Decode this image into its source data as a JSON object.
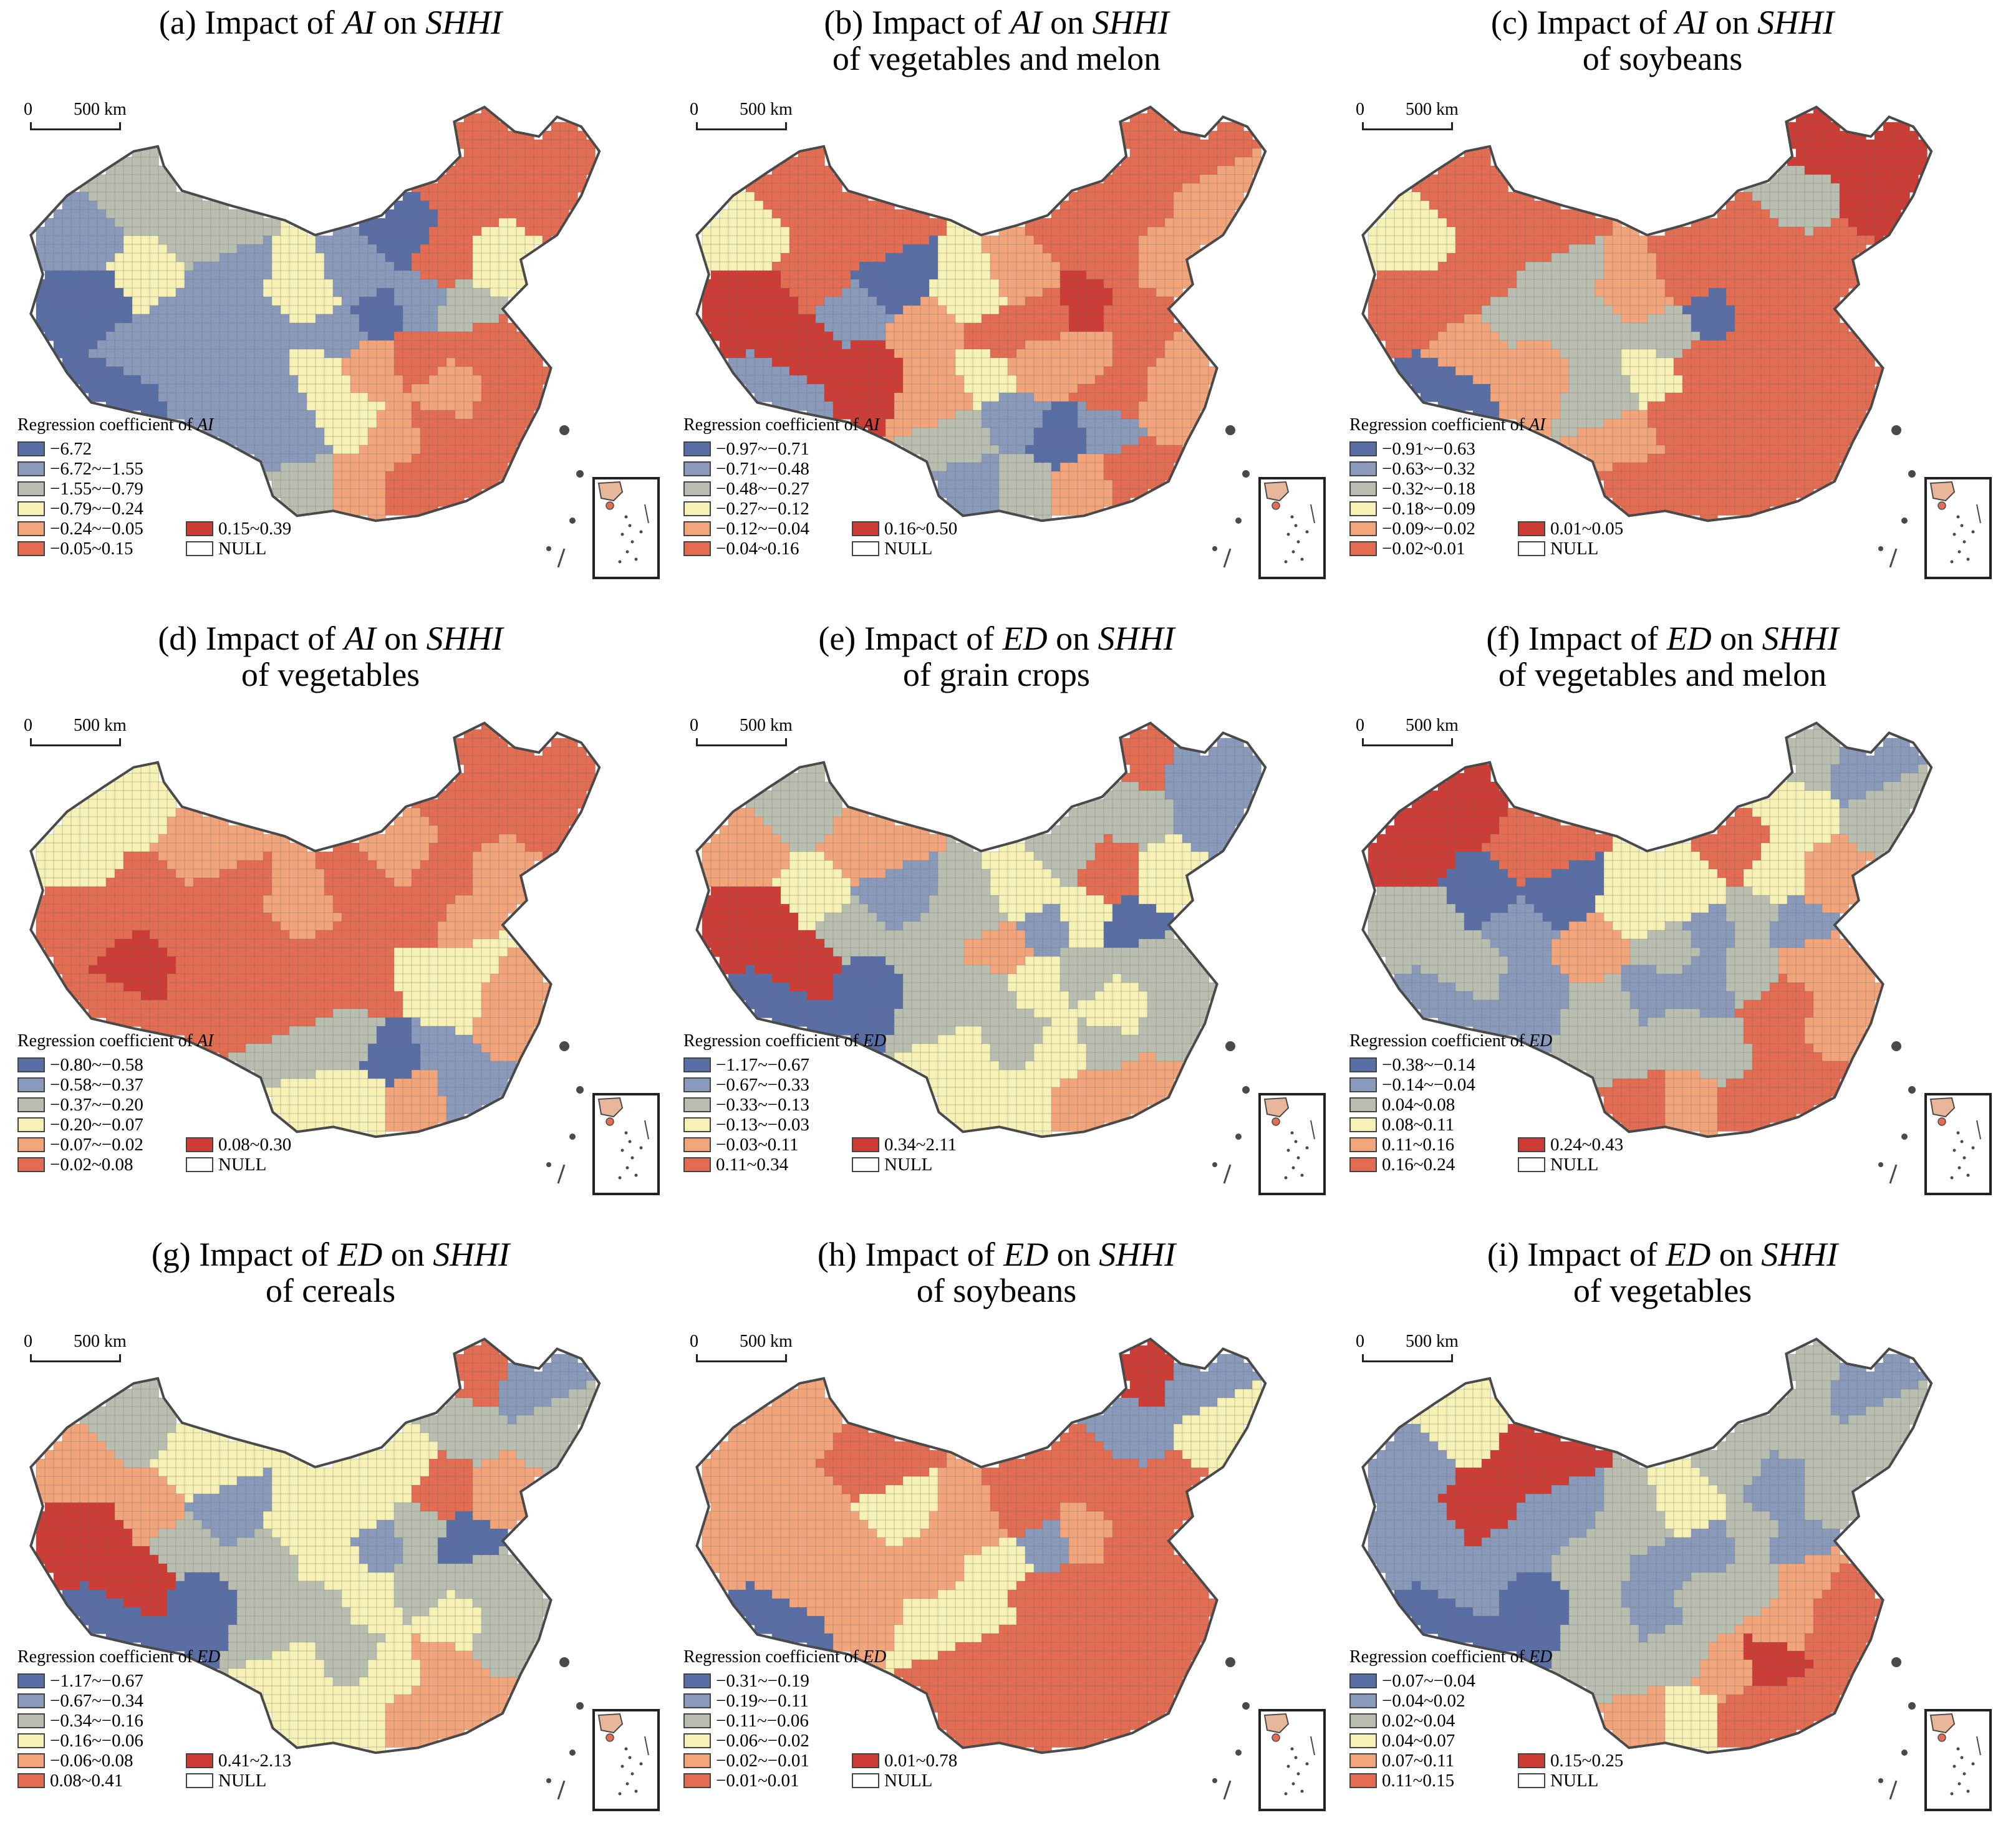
{
  "palette": {
    "c1": "#5a6ea6",
    "c2": "#8a9abb",
    "c3": "#b8bfb0",
    "c4": "#f6f2b6",
    "c5": "#f2a57a",
    "c6": "#e36d52",
    "c7": "#cd3d35",
    "null": "#ffffff",
    "border": "#4a4a4a"
  },
  "scale": {
    "zero": "0",
    "distance": "500 km"
  },
  "panels": [
    {
      "id": "a",
      "title_prefix": "(a) Impact of ",
      "var1": "AI",
      "mid": " on ",
      "var2": "SHHI",
      "subtitle": "",
      "legend_title": "Regression coefficient of ",
      "legend_var": "AI",
      "classes": [
        "−6.72",
        "−6.72~−1.55",
        "−1.55~−0.79",
        "−0.79~−0.24",
        "−0.24~−0.05",
        "−0.05~0.15",
        "0.15~0.39"
      ],
      "null_label": "NULL",
      "region_classes": [
        2,
        3,
        3,
        4,
        2,
        2,
        6,
        6,
        6,
        6,
        1,
        2,
        6,
        4,
        4,
        2,
        2,
        1,
        2,
        3,
        1,
        2,
        2,
        1,
        2,
        4,
        5,
        6,
        6,
        6,
        5,
        6,
        2,
        4,
        5,
        6,
        5,
        6,
        3,
        6
      ]
    },
    {
      "id": "b",
      "title_prefix": "(b) Impact of ",
      "var1": "AI",
      "mid": " on ",
      "var2": "SHHI",
      "subtitle": "of vegetables and melon",
      "legend_title": "Regression coefficient of ",
      "legend_var": "AI",
      "classes": [
        "−0.97~−0.71",
        "−0.71~−0.48",
        "−0.48~−0.27",
        "−0.27~−0.12",
        "−0.12~−0.04",
        "−0.04~0.16",
        "0.16~0.50"
      ],
      "null_label": "NULL",
      "region_classes": [
        4,
        6,
        6,
        6,
        1,
        2,
        6,
        6,
        5,
        6,
        6,
        5,
        6,
        5,
        4,
        5,
        6,
        6,
        7,
        6,
        7,
        7,
        7,
        2,
        5,
        4,
        5,
        5,
        6,
        5,
        6,
        5,
        3,
        2,
        1,
        2,
        3,
        5,
        2,
        6
      ]
    },
    {
      "id": "c",
      "title_prefix": "(c) Impact of ",
      "var1": "AI",
      "mid": " on ",
      "var2": "SHHI",
      "subtitle": "of soybeans",
      "legend_title": "Regression coefficient of ",
      "legend_var": "AI",
      "classes": [
        "−0.91~−0.63",
        "−0.63~−0.32",
        "−0.32~−0.18",
        "−0.18~−0.09",
        "−0.09~−0.02",
        "−0.02~0.01",
        "0.01~0.05"
      ],
      "null_label": "NULL",
      "region_classes": [
        4,
        6,
        6,
        6,
        3,
        3,
        7,
        7,
        7,
        3,
        6,
        6,
        6,
        6,
        5,
        3,
        3,
        1,
        6,
        6,
        6,
        5,
        5,
        1,
        3,
        4,
        6,
        6,
        6,
        6,
        6,
        6,
        5,
        6,
        6,
        6,
        6,
        6,
        6,
        6
      ]
    },
    {
      "id": "d",
      "title_prefix": "(d) Impact of ",
      "var1": "AI",
      "mid": " on ",
      "var2": "SHHI",
      "subtitle": "of vegetables",
      "legend_title": "Regression coefficient of ",
      "legend_var": "AI",
      "classes": [
        "−0.80~−0.58",
        "−0.58~−0.37",
        "−0.37~−0.20",
        "−0.20~−0.07",
        "−0.07~−0.02",
        "−0.02~0.08",
        "0.08~0.30"
      ],
      "null_label": "NULL",
      "region_classes": [
        4,
        4,
        5,
        6,
        6,
        6,
        6,
        6,
        6,
        6,
        5,
        6,
        6,
        5,
        5,
        6,
        6,
        6,
        6,
        5,
        6,
        7,
        6,
        6,
        6,
        6,
        6,
        4,
        4,
        5,
        4,
        5,
        3,
        3,
        1,
        2,
        4,
        5,
        4,
        2
      ]
    },
    {
      "id": "e",
      "title_prefix": "(e) Impact of ",
      "var1": "ED",
      "mid": " on ",
      "var2": "SHHI",
      "subtitle": "of grain crops",
      "legend_title": "Regression coefficient of ",
      "legend_var": "ED",
      "classes": [
        "−1.17~−0.67",
        "−0.67~−0.33",
        "−0.33~−0.13",
        "−0.13~−0.03",
        "−0.03~0.11",
        "0.11~0.34",
        "0.34~2.11"
      ],
      "null_label": "NULL",
      "region_classes": [
        5,
        3,
        5,
        4,
        2,
        3,
        6,
        2,
        2,
        3,
        3,
        4,
        6,
        4,
        3,
        3,
        5,
        2,
        4,
        1,
        7,
        7,
        1,
        1,
        3,
        3,
        4,
        3,
        3,
        3,
        4,
        3,
        4,
        3,
        4,
        3,
        4,
        5,
        4,
        5
      ]
    },
    {
      "id": "f",
      "title_prefix": "(f) Impact of ",
      "var1": "ED",
      "mid": " on ",
      "var2": "SHHI",
      "subtitle": "of vegetables and melon",
      "legend_title": "Regression coefficient of ",
      "legend_var": "ED",
      "classes": [
        "−0.38~−0.14",
        "−0.14~−0.04",
        "0.04~0.08",
        "0.08~0.11",
        "0.11~0.16",
        "0.16~0.24",
        "0.24~0.43"
      ],
      "null_label": "NULL",
      "region_classes": [
        7,
        7,
        6,
        1,
        1,
        2,
        3,
        2,
        3,
        4,
        6,
        4,
        4,
        5,
        4,
        5,
        3,
        2,
        3,
        2,
        3,
        3,
        2,
        2,
        3,
        2,
        2,
        3,
        5,
        5,
        6,
        5,
        3,
        3,
        3,
        6,
        5,
        6,
        6,
        6
      ]
    },
    {
      "id": "g",
      "title_prefix": "(g) Impact of ",
      "var1": "ED",
      "mid": " on ",
      "var2": "SHHI",
      "subtitle": "of cereals",
      "legend_title": "Regression coefficient of ",
      "legend_var": "ED",
      "classes": [
        "−1.17~−0.67",
        "−0.67~−0.34",
        "−0.34~−0.16",
        "−0.16~−0.06",
        "−0.06~0.08",
        "0.08~0.41",
        "0.41~2.13"
      ],
      "null_label": "NULL",
      "region_classes": [
        5,
        3,
        4,
        5,
        2,
        3,
        6,
        2,
        3,
        3,
        4,
        4,
        6,
        5,
        4,
        3,
        4,
        2,
        3,
        1,
        7,
        7,
        1,
        1,
        3,
        3,
        4,
        3,
        3,
        3,
        4,
        3,
        4,
        3,
        4,
        5,
        4,
        5,
        4,
        5
      ]
    },
    {
      "id": "h",
      "title_prefix": "(h) Impact of ",
      "var1": "ED",
      "mid": " on ",
      "var2": "SHHI",
      "subtitle": "of soybeans",
      "legend_title": "Regression coefficient of ",
      "legend_var": "ED",
      "classes": [
        "−0.31~−0.19",
        "−0.19~−0.11",
        "−0.11~−0.06",
        "−0.06~−0.02",
        "−0.02~−0.01",
        "−0.01~0.01",
        "0.01~0.78"
      ],
      "null_label": "NULL",
      "region_classes": [
        5,
        5,
        6,
        5,
        4,
        5,
        7,
        2,
        4,
        2,
        6,
        6,
        6,
        6,
        5,
        5,
        4,
        2,
        5,
        6,
        5,
        5,
        5,
        1,
        4,
        4,
        6,
        6,
        6,
        6,
        6,
        6,
        6,
        6,
        6,
        6,
        6,
        6,
        6,
        6
      ]
    },
    {
      "id": "i",
      "title_prefix": "(i) Impact of ",
      "var1": "ED",
      "mid": " on ",
      "var2": "SHHI",
      "subtitle": "of vegetables",
      "legend_title": "Regression coefficient of ",
      "legend_var": "ED",
      "classes": [
        "−0.07~−0.04",
        "−0.04~0.02",
        "0.02~0.04",
        "0.04~0.07",
        "0.07~0.11",
        "0.11~0.15",
        "0.15~0.25"
      ],
      "null_label": "NULL",
      "region_classes": [
        2,
        4,
        7,
        7,
        2,
        2,
        3,
        2,
        3,
        3,
        3,
        4,
        2,
        3,
        3,
        3,
        2,
        2,
        3,
        2,
        2,
        2,
        1,
        1,
        3,
        2,
        3,
        3,
        5,
        6,
        5,
        6,
        3,
        3,
        5,
        7,
        4,
        6,
        5,
        6
      ]
    }
  ]
}
